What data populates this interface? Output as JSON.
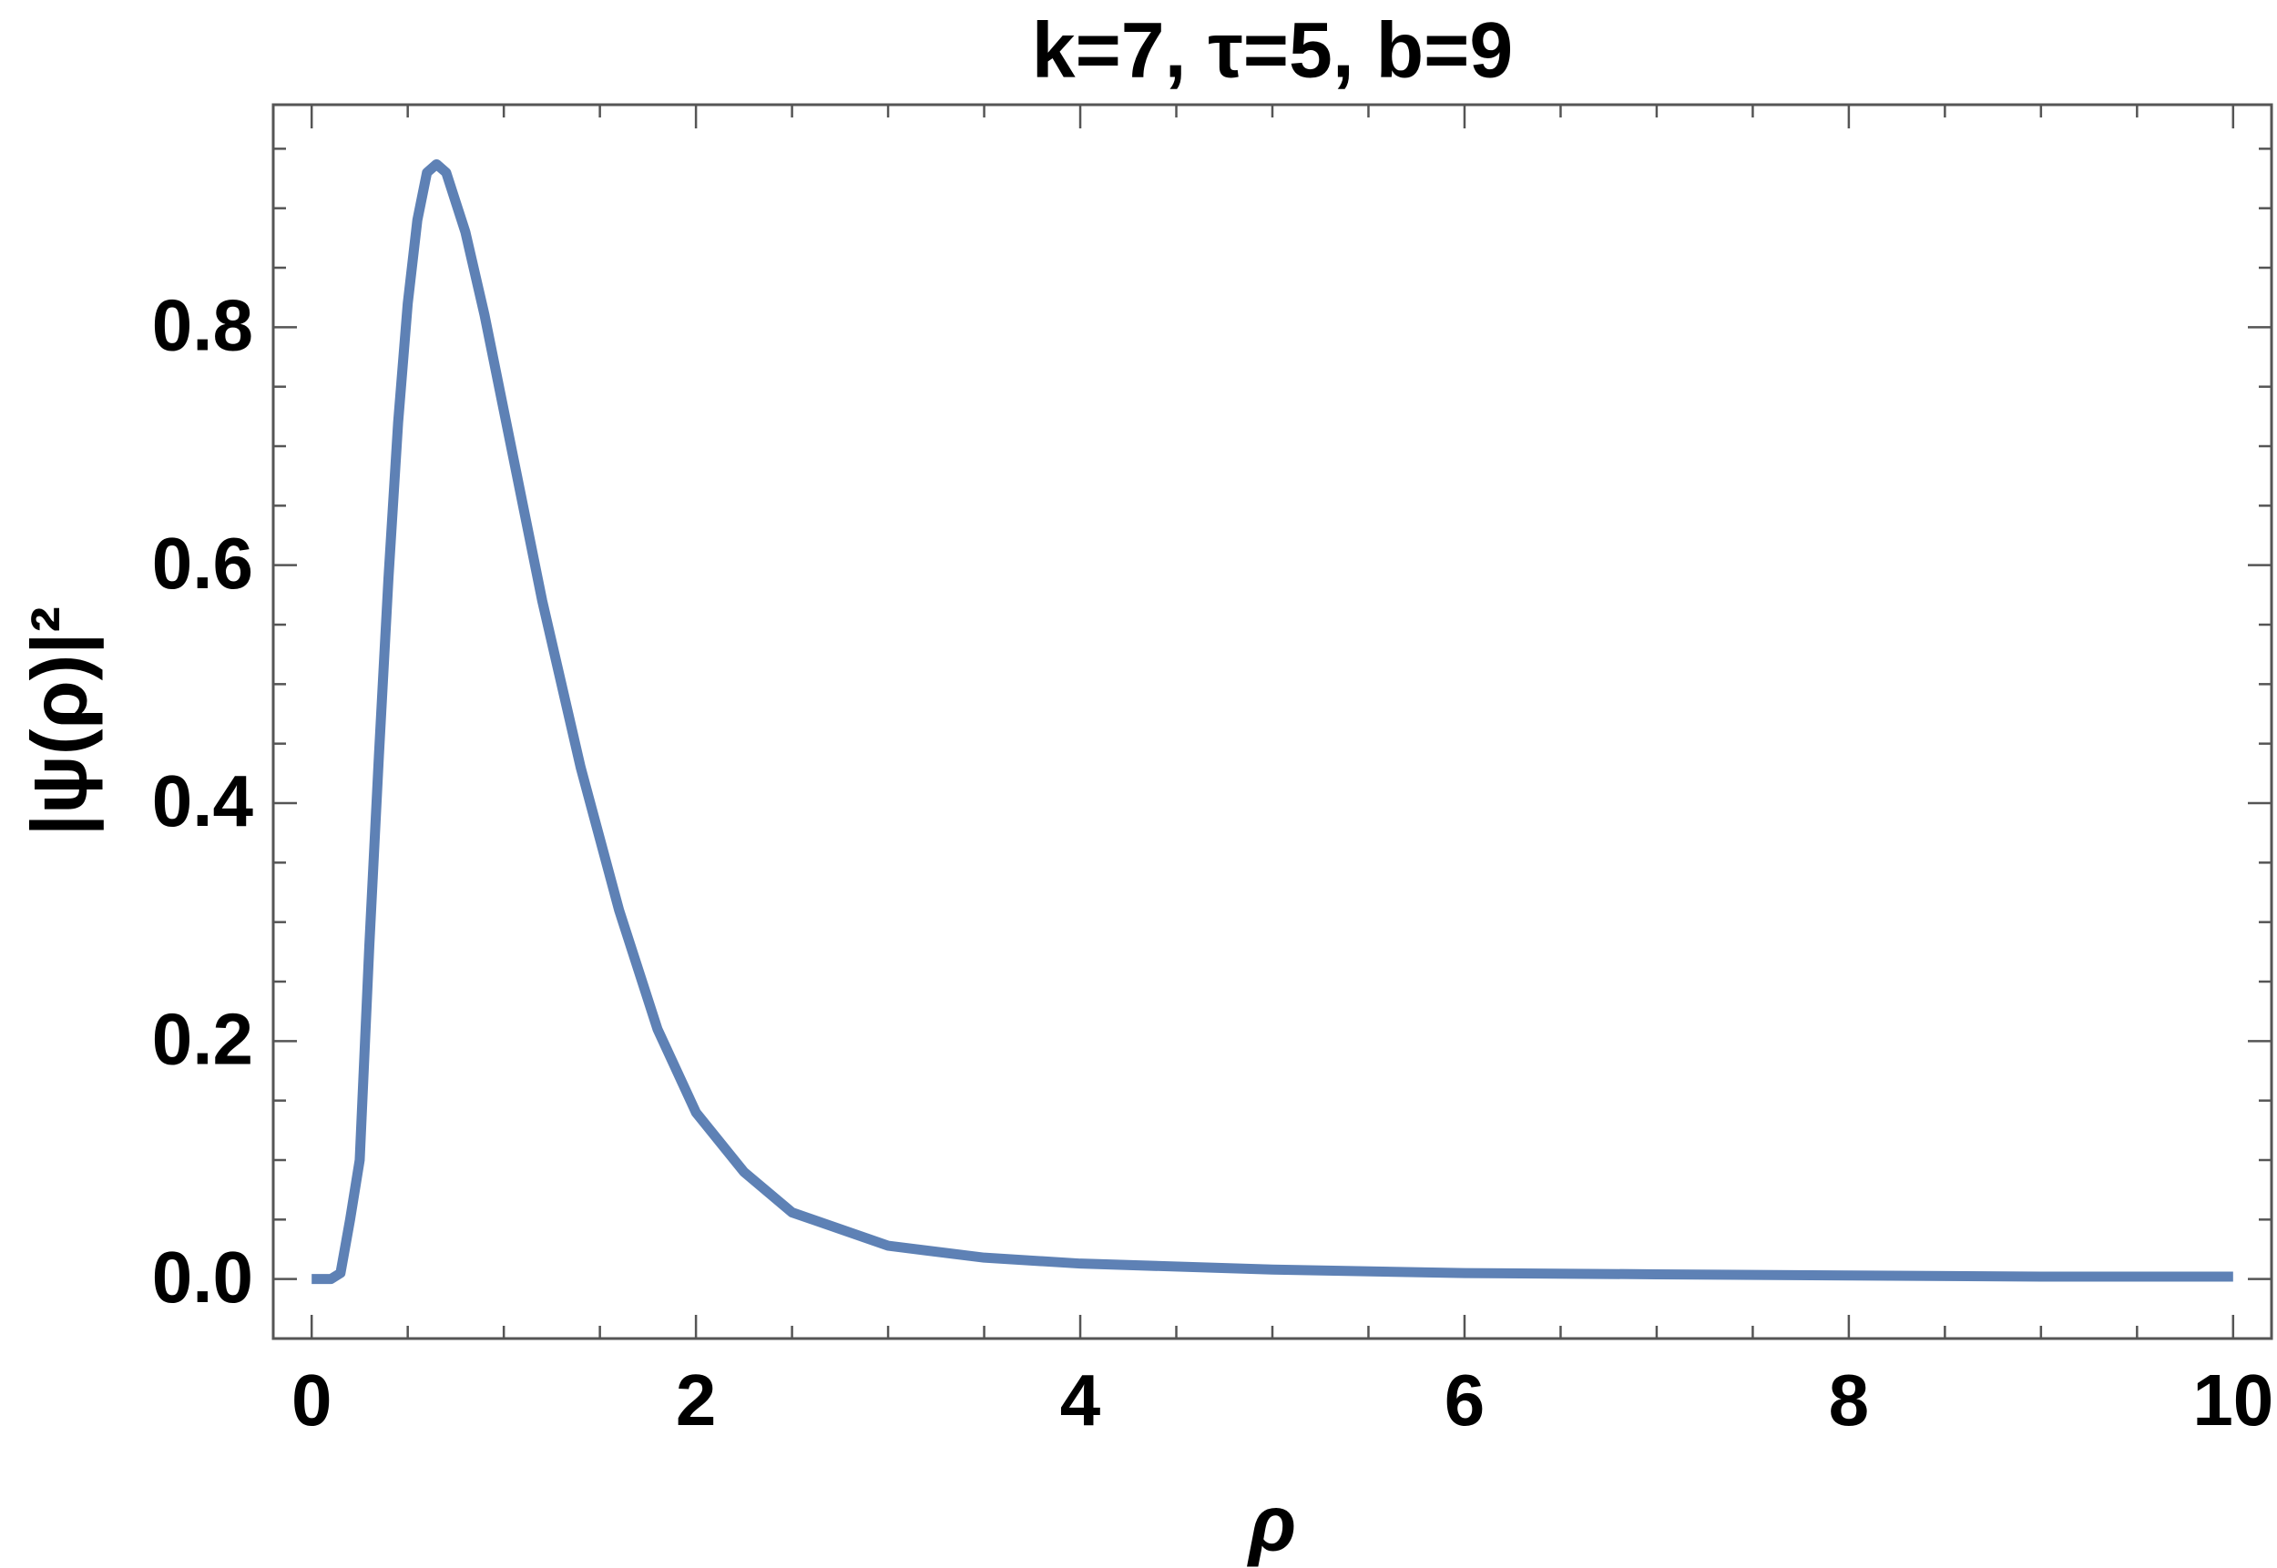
{
  "chart_data": {
    "type": "line",
    "title": "k=7, τ=5, b=9",
    "x_label": "ρ",
    "y_label": "|ψ(ρ)|²",
    "x": [
      0,
      0.1,
      0.15,
      0.2,
      0.25,
      0.3,
      0.35,
      0.4,
      0.45,
      0.5,
      0.55,
      0.6,
      0.65,
      0.7,
      0.8,
      0.9,
      1.0,
      1.2,
      1.4,
      1.6,
      1.8,
      2.0,
      2.25,
      2.5,
      3.0,
      3.5,
      4,
      5,
      6,
      7,
      8,
      9,
      10
    ],
    "series": [
      {
        "name": "|ψ(ρ)|²",
        "color": "#5e81b5",
        "values": [
          0,
          0.0,
          0.005,
          0.05,
          0.1,
          0.28,
          0.44,
          0.59,
          0.72,
          0.82,
          0.89,
          0.93,
          0.937,
          0.93,
          0.88,
          0.81,
          0.73,
          0.57,
          0.43,
          0.31,
          0.21,
          0.14,
          0.09,
          0.056,
          0.028,
          0.018,
          0.013,
          0.008,
          0.005,
          0.004,
          0.003,
          0.002,
          0.002
        ]
      }
    ],
    "xlim": [
      -0.2,
      10.2
    ],
    "ylim": [
      -0.05,
      0.987
    ],
    "xticks": [
      0,
      2,
      4,
      6,
      8,
      10
    ],
    "yticks": [
      {
        "value": 0,
        "label": "0.0"
      },
      0.2,
      0.4,
      0.6,
      0.8
    ],
    "x_minor_ticks": [
      0.5,
      1,
      1.5,
      2.5,
      3,
      3.5,
      4.5,
      5,
      5.5,
      6.5,
      7,
      7.5,
      8.5,
      9,
      9.5
    ],
    "y_minor_ticks": [
      0.05,
      0.1,
      0.15,
      0.25,
      0.3,
      0.35,
      0.45,
      0.5,
      0.55,
      0.65,
      0.7,
      0.75,
      0.85,
      0.9,
      0.95
    ],
    "grid": false
  }
}
